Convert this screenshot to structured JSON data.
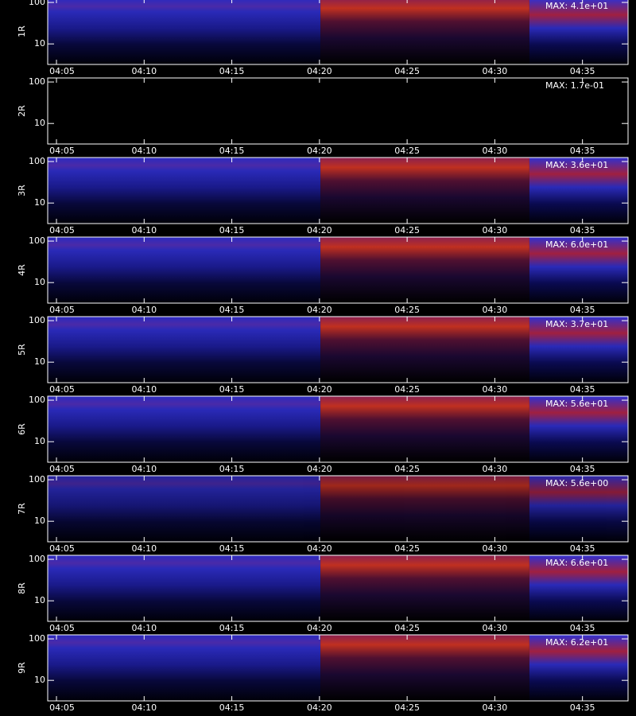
{
  "chart_data": [
    {
      "type": "spectrogram",
      "ylabel": "1R",
      "log_y": true,
      "ylim": [
        3.2,
        125
      ],
      "yticks": [
        10,
        100
      ],
      "xlim": [
        244.5,
        277.6
      ],
      "xticks": [
        {
          "value": 245,
          "label": "04:05"
        },
        {
          "value": 250,
          "label": "04:10"
        },
        {
          "value": 255,
          "label": "04:15"
        },
        {
          "value": 260,
          "label": "04:20"
        },
        {
          "value": 265,
          "label": "04:25"
        },
        {
          "value": 270,
          "label": "04:30"
        },
        {
          "value": 275,
          "label": "04:35"
        }
      ],
      "max": {
        "value": 41,
        "label": "MAX: 4.1e+01"
      }
    },
    {
      "type": "spectrogram",
      "ylabel": "2R",
      "log_y": true,
      "ylim": [
        3.2,
        125
      ],
      "yticks": [
        10,
        100
      ],
      "xlim": [
        244.5,
        277.6
      ],
      "xticks": [
        {
          "value": 245,
          "label": "04:05"
        },
        {
          "value": 250,
          "label": "04:10"
        },
        {
          "value": 255,
          "label": "04:15"
        },
        {
          "value": 260,
          "label": "04:20"
        },
        {
          "value": 265,
          "label": "04:25"
        },
        {
          "value": 270,
          "label": "04:30"
        },
        {
          "value": 275,
          "label": "04:35"
        }
      ],
      "max": {
        "value": 0.17,
        "label": "MAX: 1.7e-01"
      }
    },
    {
      "type": "spectrogram",
      "ylabel": "3R",
      "log_y": true,
      "ylim": [
        3.2,
        125
      ],
      "yticks": [
        10,
        100
      ],
      "xlim": [
        244.5,
        277.6
      ],
      "xticks": [
        {
          "value": 245,
          "label": "04:05"
        },
        {
          "value": 250,
          "label": "04:10"
        },
        {
          "value": 255,
          "label": "04:15"
        },
        {
          "value": 260,
          "label": "04:20"
        },
        {
          "value": 265,
          "label": "04:25"
        },
        {
          "value": 270,
          "label": "04:30"
        },
        {
          "value": 275,
          "label": "04:35"
        }
      ],
      "max": {
        "value": 36,
        "label": "MAX: 3.6e+01"
      }
    },
    {
      "type": "spectrogram",
      "ylabel": "4R",
      "log_y": true,
      "ylim": [
        3.2,
        125
      ],
      "yticks": [
        10,
        100
      ],
      "xlim": [
        244.5,
        277.6
      ],
      "xticks": [
        {
          "value": 245,
          "label": "04:05"
        },
        {
          "value": 250,
          "label": "04:10"
        },
        {
          "value": 255,
          "label": "04:15"
        },
        {
          "value": 260,
          "label": "04:20"
        },
        {
          "value": 265,
          "label": "04:25"
        },
        {
          "value": 270,
          "label": "04:30"
        },
        {
          "value": 275,
          "label": "04:35"
        }
      ],
      "max": {
        "value": 60,
        "label": "MAX: 6.0e+01"
      }
    },
    {
      "type": "spectrogram",
      "ylabel": "5R",
      "log_y": true,
      "ylim": [
        3.2,
        125
      ],
      "yticks": [
        10,
        100
      ],
      "xlim": [
        244.5,
        277.6
      ],
      "xticks": [
        {
          "value": 245,
          "label": "04:05"
        },
        {
          "value": 250,
          "label": "04:10"
        },
        {
          "value": 255,
          "label": "04:15"
        },
        {
          "value": 260,
          "label": "04:20"
        },
        {
          "value": 265,
          "label": "04:25"
        },
        {
          "value": 270,
          "label": "04:30"
        },
        {
          "value": 275,
          "label": "04:35"
        }
      ],
      "max": {
        "value": 37,
        "label": "MAX: 3.7e+01"
      }
    },
    {
      "type": "spectrogram",
      "ylabel": "6R",
      "log_y": true,
      "ylim": [
        3.2,
        125
      ],
      "yticks": [
        10,
        100
      ],
      "xlim": [
        244.5,
        277.6
      ],
      "xticks": [
        {
          "value": 245,
          "label": "04:05"
        },
        {
          "value": 250,
          "label": "04:10"
        },
        {
          "value": 255,
          "label": "04:15"
        },
        {
          "value": 260,
          "label": "04:20"
        },
        {
          "value": 265,
          "label": "04:25"
        },
        {
          "value": 270,
          "label": "04:30"
        },
        {
          "value": 275,
          "label": "04:35"
        }
      ],
      "max": {
        "value": 56,
        "label": "MAX: 5.6e+01"
      }
    },
    {
      "type": "spectrogram",
      "ylabel": "7R",
      "log_y": true,
      "ylim": [
        3.2,
        125
      ],
      "yticks": [
        10,
        100
      ],
      "xlim": [
        244.5,
        277.6
      ],
      "xticks": [
        {
          "value": 245,
          "label": "04:05"
        },
        {
          "value": 250,
          "label": "04:10"
        },
        {
          "value": 255,
          "label": "04:15"
        },
        {
          "value": 260,
          "label": "04:20"
        },
        {
          "value": 265,
          "label": "04:25"
        },
        {
          "value": 270,
          "label": "04:30"
        },
        {
          "value": 275,
          "label": "04:35"
        }
      ],
      "max": {
        "value": 5.6,
        "label": "MAX: 5.6e+00"
      }
    },
    {
      "type": "spectrogram",
      "ylabel": "8R",
      "log_y": true,
      "ylim": [
        3.2,
        125
      ],
      "yticks": [
        10,
        100
      ],
      "xlim": [
        244.5,
        277.6
      ],
      "xticks": [
        {
          "value": 245,
          "label": "04:05"
        },
        {
          "value": 250,
          "label": "04:10"
        },
        {
          "value": 255,
          "label": "04:15"
        },
        {
          "value": 260,
          "label": "04:20"
        },
        {
          "value": 265,
          "label": "04:25"
        },
        {
          "value": 270,
          "label": "04:30"
        },
        {
          "value": 275,
          "label": "04:35"
        }
      ],
      "max": {
        "value": 66,
        "label": "MAX: 6.6e+01"
      }
    },
    {
      "type": "spectrogram",
      "ylabel": "9R",
      "log_y": true,
      "ylim": [
        3.2,
        125
      ],
      "yticks": [
        10,
        100
      ],
      "xlim": [
        244.5,
        277.6
      ],
      "xticks": [
        {
          "value": 245,
          "label": "04:05"
        },
        {
          "value": 250,
          "label": "04:10"
        },
        {
          "value": 255,
          "label": "04:15"
        },
        {
          "value": 260,
          "label": "04:20"
        },
        {
          "value": 265,
          "label": "04:25"
        },
        {
          "value": 270,
          "label": "04:30"
        },
        {
          "value": 275,
          "label": "04:35"
        }
      ],
      "max": {
        "value": 62,
        "label": "MAX: 6.2e+01"
      }
    }
  ]
}
